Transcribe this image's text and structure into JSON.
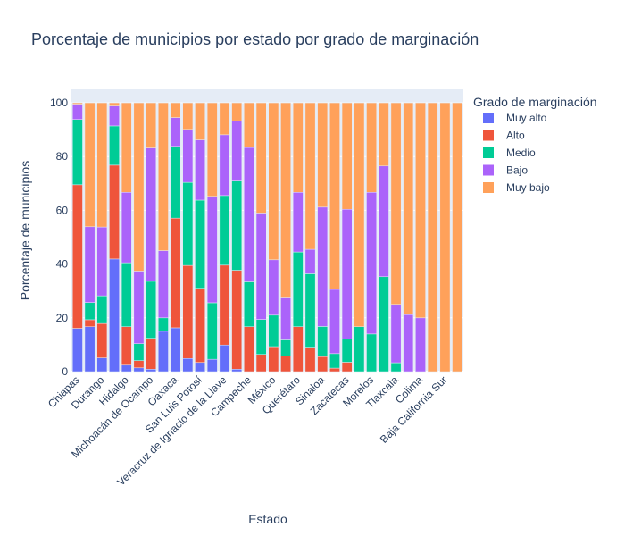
{
  "chart_data": {
    "type": "bar",
    "stacked": true,
    "title": "Porcentaje de municipios por estado por grado de marginación",
    "xlabel": "Estado",
    "ylabel": "Porcentaje de municipios",
    "ylim": [
      0,
      105
    ],
    "yticks": [
      0,
      20,
      40,
      60,
      80,
      100
    ],
    "grid": true,
    "legend_title": "Grado de marginación",
    "legend_position": "right",
    "x_tick_labels": [
      "Chiapas",
      "Durango",
      "Hidalgo",
      "Michoacán de Ocampo",
      "Oaxaca",
      "San Luis Potosí",
      "Veracruz de Ignacio de la Llave",
      "Campeche",
      "México",
      "Querétaro",
      "Sinaloa",
      "Zacatecas",
      "Morelos",
      "Tlaxcala",
      "Colima",
      "Baja California Sur"
    ],
    "bars": [
      {
        "label": "Chiapas",
        "values": [
          16.1,
          53.4,
          24.3,
          5.7,
          0.5
        ]
      },
      {
        "label": "",
        "values": [
          16.7,
          2.6,
          6.4,
          28.2,
          46.1
        ]
      },
      {
        "label": "Durango",
        "values": [
          5.1,
          12.8,
          10.3,
          25.6,
          46.2
        ]
      },
      {
        "label": "",
        "values": [
          41.9,
          34.9,
          14.6,
          7.4,
          1.2
        ]
      },
      {
        "label": "Hidalgo",
        "values": [
          2.4,
          14.3,
          23.8,
          26.2,
          33.3
        ]
      },
      {
        "label": "",
        "values": [
          1.4,
          2.7,
          6.3,
          27.0,
          62.6
        ]
      },
      {
        "label": "Michoacán de Ocampo",
        "values": [
          0.9,
          11.5,
          21.2,
          49.6,
          16.8
        ]
      },
      {
        "label": "",
        "values": [
          15.0,
          0.0,
          5.0,
          25.0,
          55.0
        ]
      },
      {
        "label": "Oaxaca",
        "values": [
          16.3,
          40.8,
          26.7,
          10.7,
          5.5
        ]
      },
      {
        "label": "",
        "values": [
          4.9,
          34.6,
          30.9,
          19.7,
          9.9
        ]
      },
      {
        "label": "San Luis Potosí",
        "values": [
          3.4,
          27.6,
          32.8,
          22.4,
          13.8
        ]
      },
      {
        "label": "",
        "values": [
          4.6,
          0.0,
          21.0,
          39.6,
          34.8
        ]
      },
      {
        "label": "Veracruz de Ignacio de la Llave",
        "values": [
          9.9,
          29.7,
          25.9,
          22.6,
          11.9
        ]
      },
      {
        "label": "",
        "values": [
          0.9,
          36.8,
          33.2,
          22.4,
          6.7
        ]
      },
      {
        "label": "Campeche",
        "values": [
          0.0,
          16.7,
          16.7,
          50.0,
          16.6
        ]
      },
      {
        "label": "",
        "values": [
          0.0,
          6.4,
          13.0,
          39.6,
          41.0
        ]
      },
      {
        "label": "México",
        "values": [
          0.0,
          9.3,
          11.7,
          20.6,
          58.4
        ]
      },
      {
        "label": "",
        "values": [
          0.0,
          5.8,
          6.0,
          15.6,
          72.6
        ]
      },
      {
        "label": "Querétaro",
        "values": [
          0.0,
          16.7,
          27.8,
          22.2,
          33.3
        ]
      },
      {
        "label": "",
        "values": [
          0.0,
          9.1,
          27.3,
          9.1,
          54.5
        ]
      },
      {
        "label": "Sinaloa",
        "values": [
          0.0,
          5.6,
          11.2,
          44.4,
          38.8
        ]
      },
      {
        "label": "",
        "values": [
          0.0,
          1.3,
          5.4,
          23.9,
          69.4
        ]
      },
      {
        "label": "Zacatecas",
        "values": [
          0.0,
          3.5,
          8.6,
          48.3,
          39.6
        ]
      },
      {
        "label": "",
        "values": [
          0.0,
          0.0,
          16.7,
          0.0,
          83.3
        ]
      },
      {
        "label": "Morelos",
        "values": [
          0.0,
          0.0,
          14.0,
          52.7,
          33.3
        ]
      },
      {
        "label": "",
        "values": [
          0.0,
          0.0,
          35.3,
          41.2,
          23.5
        ]
      },
      {
        "label": "Tlaxcala",
        "values": [
          0.0,
          0.0,
          3.3,
          21.7,
          75.0
        ]
      },
      {
        "label": "",
        "values": [
          0.0,
          0.0,
          0.0,
          21.2,
          78.8
        ]
      },
      {
        "label": "Colima",
        "values": [
          0.0,
          0.0,
          0.0,
          20.0,
          80.0
        ]
      },
      {
        "label": "",
        "values": [
          0.0,
          0.0,
          0.0,
          0.0,
          100.0
        ]
      },
      {
        "label": "Baja California Sur",
        "values": [
          0.0,
          0.0,
          0.0,
          0.0,
          100.0
        ]
      },
      {
        "label": "",
        "values": [
          0.0,
          0.0,
          0.0,
          0.0,
          100.0
        ]
      }
    ],
    "series": [
      {
        "name": "Muy alto",
        "color": "#636efa"
      },
      {
        "name": "Alto",
        "color": "#ef553b"
      },
      {
        "name": "Medio",
        "color": "#00cc96"
      },
      {
        "name": "Bajo",
        "color": "#ab63fa"
      },
      {
        "name": "Muy bajo",
        "color": "#ffa15a"
      }
    ],
    "colors": {
      "plot_bg": "#e5ecf6",
      "text": "#2a3f5f",
      "grid": "#ffffff"
    }
  }
}
